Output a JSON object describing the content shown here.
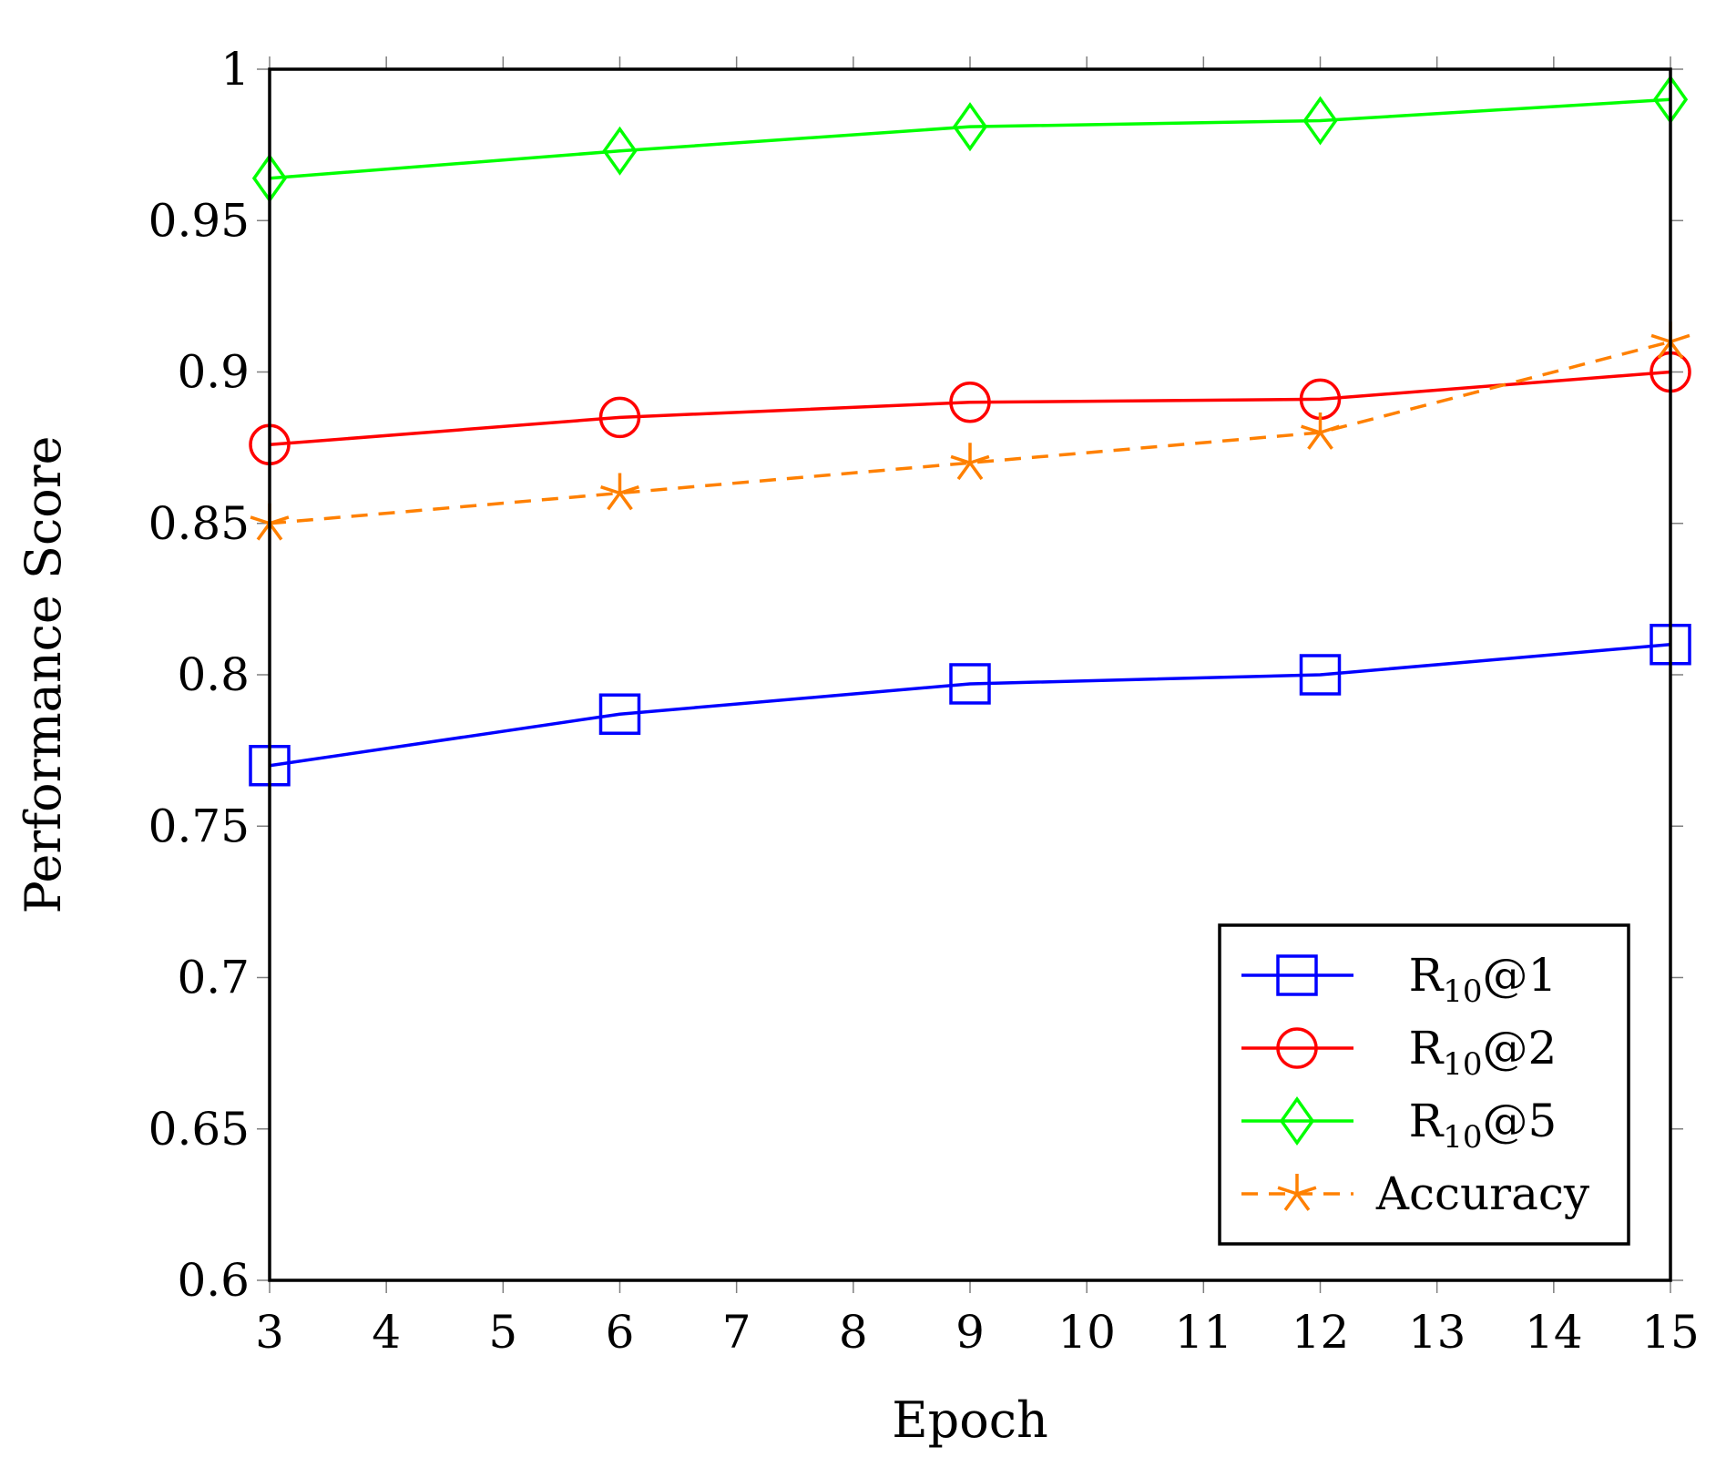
{
  "chart_data": {
    "type": "line",
    "title": "",
    "xlabel": "Epoch",
    "ylabel": "Performance Score",
    "xlim": [
      3,
      15
    ],
    "ylim": [
      0.6,
      1
    ],
    "x_ticks": [
      "3",
      "4",
      "5",
      "6",
      "7",
      "8",
      "9",
      "10",
      "11",
      "12",
      "13",
      "14",
      "15"
    ],
    "y_ticks": [
      "0.6",
      "0.65",
      "0.7",
      "0.75",
      "0.8",
      "0.85",
      "0.9",
      "0.95",
      "1"
    ],
    "grid": false,
    "legend_position": "bottom-right",
    "series": [
      {
        "name": "R10@1",
        "label_main": "R",
        "label_sub": "10",
        "label_tail": "@1",
        "color": "#0000ff",
        "marker": "square",
        "dashed": false,
        "x": [
          3,
          6,
          9,
          12,
          15
        ],
        "y": [
          0.77,
          0.787,
          0.797,
          0.8,
          0.81
        ]
      },
      {
        "name": "R10@2",
        "label_main": "R",
        "label_sub": "10",
        "label_tail": "@2",
        "color": "#ff0000",
        "marker": "circle",
        "dashed": false,
        "x": [
          3,
          6,
          9,
          12,
          15
        ],
        "y": [
          0.876,
          0.885,
          0.89,
          0.891,
          0.9
        ]
      },
      {
        "name": "R10@5",
        "label_main": "R",
        "label_sub": "10",
        "label_tail": "@5",
        "color": "#00ff00",
        "marker": "diamond",
        "dashed": false,
        "x": [
          3,
          6,
          9,
          12,
          15
        ],
        "y": [
          0.964,
          0.973,
          0.981,
          0.983,
          0.99
        ]
      },
      {
        "name": "Accuracy",
        "label_main": "Accuracy",
        "label_sub": "",
        "label_tail": "",
        "color": "#ff8000",
        "marker": "star",
        "dashed": true,
        "x": [
          3,
          6,
          9,
          12,
          15
        ],
        "y": [
          0.85,
          0.86,
          0.87,
          0.88,
          0.91
        ]
      }
    ]
  }
}
